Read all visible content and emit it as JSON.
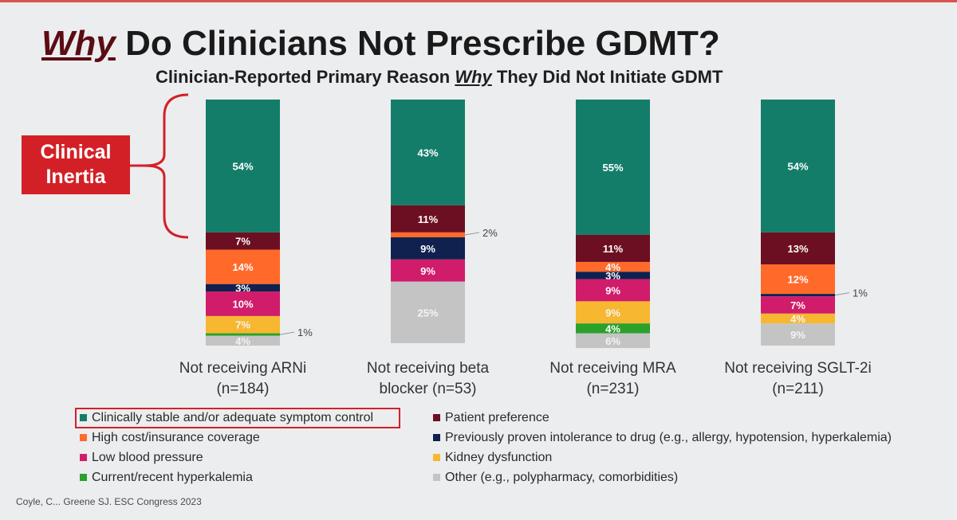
{
  "slide": {
    "title_emph": "Why",
    "title_rest": " Do Clinicians Not Prescribe GDMT?",
    "subtitle_before": "Clinician-Reported Primary Reason ",
    "subtitle_emph": "Why",
    "subtitle_after": " They Did Not Initiate GDMT",
    "inertia_line1": "Clinical",
    "inertia_line2": "Inertia",
    "citation": "Coyle, C... Greene SJ. ESC Congress 2023"
  },
  "colors": {
    "stable": "#147d6a",
    "patient": "#6d0f22",
    "cost": "#ff6a2a",
    "intolerance": "#10214f",
    "lowbp": "#d01c6b",
    "kidney": "#f7b731",
    "hyperk": "#2aa12a",
    "other": "#c4c4c4",
    "accent_red": "#d32027"
  },
  "legend": [
    {
      "key": "stable",
      "label": "Clinically stable and/or adequate symptom control"
    },
    {
      "key": "cost",
      "label": "High cost/insurance coverage"
    },
    {
      "key": "lowbp",
      "label": "Low blood pressure"
    },
    {
      "key": "hyperk",
      "label": "Current/recent hyperkalemia"
    },
    {
      "key": "patient",
      "label": "Patient preference"
    },
    {
      "key": "intolerance",
      "label": "Previously proven intolerance to drug (e.g., allergy, hypotension, hyperkalemia)"
    },
    {
      "key": "kidney",
      "label": "Kidney dysfunction"
    },
    {
      "key": "other",
      "label": "Other (e.g., polypharmacy, comorbidities)"
    }
  ],
  "chart_data": {
    "type": "bar",
    "stacked": true,
    "orientation": "vertical",
    "unit": "%",
    "categories": [
      [
        "Not receiving ARNi",
        "(n=184)"
      ],
      [
        "Not receiving beta",
        "blocker (n=53)"
      ],
      [
        "Not receiving MRA",
        "(n=231)"
      ],
      [
        "Not receiving SGLT-2i",
        "(n=211)"
      ]
    ],
    "series": [
      {
        "name": "Clinically stable and/or adequate symptom control",
        "key": "stable",
        "values": [
          54,
          43,
          55,
          54
        ]
      },
      {
        "name": "Patient preference",
        "key": "patient",
        "values": [
          7,
          11,
          11,
          13
        ]
      },
      {
        "name": "High cost/insurance coverage",
        "key": "cost",
        "values": [
          14,
          2,
          4,
          12
        ]
      },
      {
        "name": "Previously proven intolerance to drug (e.g., allergy, hypotension, hyperkalemia)",
        "key": "intolerance",
        "values": [
          3,
          9,
          3,
          1
        ]
      },
      {
        "name": "Low blood pressure",
        "key": "lowbp",
        "values": [
          10,
          9,
          9,
          7
        ]
      },
      {
        "name": "Kidney dysfunction",
        "key": "kidney",
        "values": [
          7,
          0,
          9,
          4
        ]
      },
      {
        "name": "Current/recent hyperkalemia",
        "key": "hyperk",
        "values": [
          1,
          0,
          4,
          0
        ]
      },
      {
        "name": "Other (e.g., polypharmacy, comorbidities)",
        "key": "other",
        "values": [
          4,
          25,
          6,
          9
        ]
      }
    ],
    "outside_labels": [
      {
        "category": 0,
        "series": "hyperk",
        "text": "1%"
      },
      {
        "category": 1,
        "series": "cost",
        "text": "2%"
      },
      {
        "category": 3,
        "series": "intolerance",
        "text": "1%"
      }
    ],
    "legend_position": "bottom",
    "grid": false
  }
}
